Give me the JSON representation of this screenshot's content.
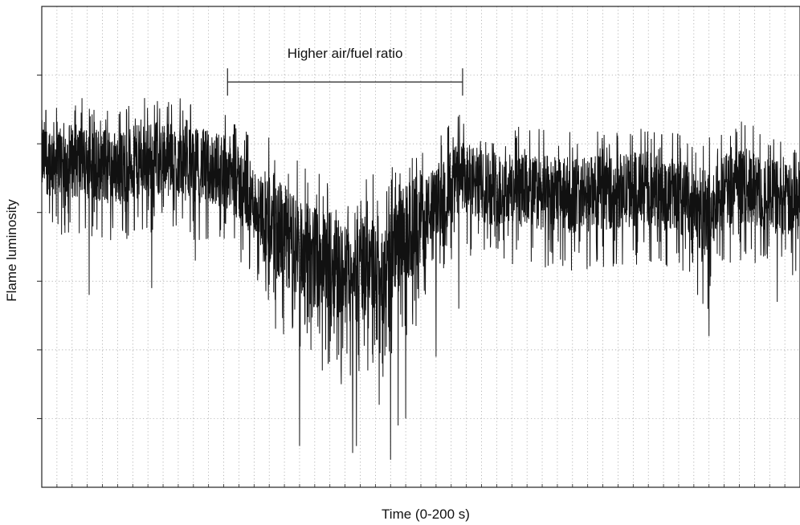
{
  "chart_data": {
    "type": "line",
    "title": "",
    "xlabel": "Time (0-200 s)",
    "ylabel": "Flame luminosity",
    "xlim": [
      0,
      200
    ],
    "ylim": [
      0,
      7
    ],
    "grid": true,
    "legend": "none",
    "line_color": "#111111",
    "annotation": {
      "text": "Higher air/fuel ratio",
      "x_start": 49,
      "x_end": 111,
      "y": 5.9
    },
    "series": [
      {
        "envelope": {
          "x": [
            0,
            10,
            20,
            30,
            40,
            49,
            55,
            60,
            65,
            70,
            75,
            78,
            82,
            85,
            88,
            90,
            92,
            95,
            100,
            105,
            110,
            115,
            120,
            130,
            140,
            150,
            160,
            170,
            175,
            180,
            185,
            190,
            200
          ],
          "y": [
            4.8,
            4.75,
            4.65,
            4.8,
            4.7,
            4.6,
            4.2,
            3.9,
            3.6,
            3.4,
            3.3,
            3.2,
            3.0,
            3.2,
            3.3,
            3.1,
            3.4,
            3.6,
            3.9,
            4.2,
            4.5,
            4.4,
            4.35,
            4.3,
            4.25,
            4.3,
            4.35,
            4.2,
            3.9,
            4.3,
            4.4,
            4.3,
            4.1
          ]
        },
        "spikes": [
          {
            "x": 12.5,
            "y": 2.8
          },
          {
            "x": 29,
            "y": 2.9
          },
          {
            "x": 40.5,
            "y": 3.3
          },
          {
            "x": 65,
            "y": 2.9
          },
          {
            "x": 68,
            "y": 0.6
          },
          {
            "x": 71,
            "y": 2.0
          },
          {
            "x": 74,
            "y": 1.7
          },
          {
            "x": 79,
            "y": 1.5
          },
          {
            "x": 82,
            "y": 0.5
          },
          {
            "x": 83,
            "y": 0.6
          },
          {
            "x": 86,
            "y": 1.7
          },
          {
            "x": 89,
            "y": 1.2
          },
          {
            "x": 92,
            "y": 0.4
          },
          {
            "x": 94,
            "y": 0.9
          },
          {
            "x": 96,
            "y": 1.0
          },
          {
            "x": 104,
            "y": 1.9
          },
          {
            "x": 110,
            "y": 2.6
          },
          {
            "x": 173,
            "y": 2.8
          },
          {
            "x": 176,
            "y": 2.2
          },
          {
            "x": 194,
            "y": 2.7
          }
        ]
      }
    ]
  }
}
